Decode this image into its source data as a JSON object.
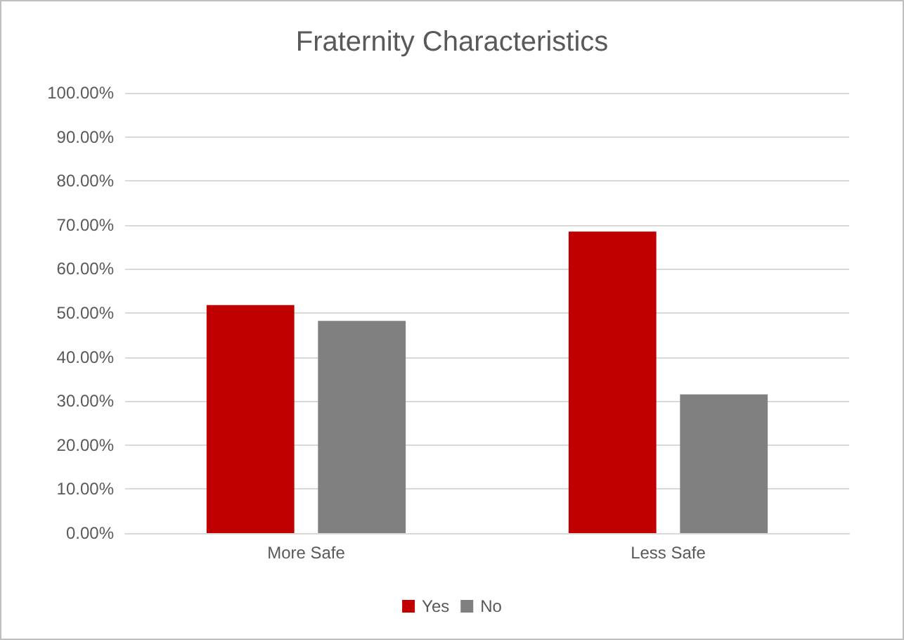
{
  "chart_data": {
    "type": "bar",
    "title": "Fraternity Characteristics",
    "categories": [
      "More Safe",
      "Less Safe"
    ],
    "series": [
      {
        "name": "Yes",
        "color": "#c00000",
        "values": [
          51.8,
          68.5
        ]
      },
      {
        "name": "No",
        "color": "#808080",
        "values": [
          48.2,
          31.5
        ]
      }
    ],
    "ylim": [
      0,
      100
    ],
    "yticks": [
      {
        "value": 0,
        "label": "0.00%"
      },
      {
        "value": 10,
        "label": "10.00%"
      },
      {
        "value": 20,
        "label": "20.00%"
      },
      {
        "value": 30,
        "label": "30.00%"
      },
      {
        "value": 40,
        "label": "40.00%"
      },
      {
        "value": 50,
        "label": "50.00%"
      },
      {
        "value": 60,
        "label": "60.00%"
      },
      {
        "value": 70,
        "label": "70.00%"
      },
      {
        "value": 80,
        "label": "80.00%"
      },
      {
        "value": 90,
        "label": "90.00%"
      },
      {
        "value": 100,
        "label": "100.00%"
      }
    ],
    "grid": "y",
    "legend": "bottom"
  }
}
